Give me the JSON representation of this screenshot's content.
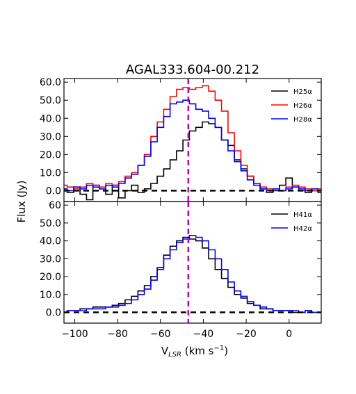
{
  "title": "AGAL333.604-00.212",
  "colors": {
    "H25a": "#000000",
    "H26a": "#ff0000",
    "H28a": "#0000ff",
    "H41a": "#000000",
    "H42a": "#0000ff",
    "vline": "#bf00bf",
    "zero": "#000000"
  },
  "chart_data": [
    {
      "type": "line",
      "panel": "top",
      "title": "AGAL333.604-00.212",
      "ylabel": "Flux (Jy)",
      "xlim": [
        -105,
        15
      ],
      "ylim": [
        -6,
        62
      ],
      "yticks": [
        "0.0",
        "10.0",
        "20.0",
        "30.0",
        "40.0",
        "50.0",
        "60.0"
      ],
      "yticks_values": [
        0,
        10,
        20,
        30,
        40,
        50,
        60
      ],
      "vline_x": -47,
      "zero_line": true,
      "legend_position": "top-right",
      "series": [
        {
          "name": "H25α",
          "key": "H25a",
          "x": [
            -105,
            -102,
            -99,
            -96,
            -93,
            -90,
            -87,
            -84,
            -81,
            -78,
            -75,
            -72,
            -69,
            -66,
            -63,
            -60,
            -57,
            -54,
            -51,
            -48,
            -45,
            -42,
            -39,
            -36,
            -33,
            -30,
            -27,
            -24,
            -21,
            -18,
            -15,
            -12,
            -9,
            -6,
            -3,
            0,
            3,
            6,
            9,
            12,
            15
          ],
          "y": [
            1,
            -1,
            2,
            -2,
            -5,
            3,
            1,
            -2,
            3,
            -4,
            0,
            3,
            -1,
            1,
            4,
            8,
            12,
            17,
            22,
            28,
            33,
            35,
            38,
            37,
            35,
            28,
            25,
            17,
            12,
            8,
            4,
            1,
            -1,
            0,
            3,
            7,
            2,
            0,
            -1,
            0,
            -1
          ]
        },
        {
          "name": "H26α",
          "key": "H26a",
          "x": [
            -105,
            -102,
            -99,
            -96,
            -93,
            -90,
            -87,
            -84,
            -81,
            -78,
            -75,
            -72,
            -69,
            -66,
            -63,
            -60,
            -57,
            -54,
            -51,
            -48,
            -45,
            -42,
            -39,
            -36,
            -33,
            -30,
            -27,
            -24,
            -21,
            -18,
            -15,
            -12,
            -9,
            -6,
            -3,
            0,
            3,
            6,
            9,
            12,
            15
          ],
          "y": [
            3,
            2,
            1,
            2,
            4,
            3,
            2,
            4,
            3,
            5,
            8,
            10,
            14,
            20,
            30,
            38,
            45,
            52,
            56,
            57,
            56,
            57,
            58,
            55,
            50,
            44,
            32,
            22,
            14,
            8,
            4,
            2,
            1,
            1,
            0,
            2,
            3,
            2,
            1,
            0,
            1
          ]
        },
        {
          "name": "H28α",
          "key": "H28a",
          "x": [
            -105,
            -102,
            -99,
            -96,
            -93,
            -90,
            -87,
            -84,
            -81,
            -78,
            -75,
            -72,
            -69,
            -66,
            -63,
            -60,
            -57,
            -54,
            -51,
            -48,
            -45,
            -42,
            -39,
            -36,
            -33,
            -30,
            -27,
            -24,
            -21,
            -18,
            -15,
            -12,
            -9,
            -6,
            -3,
            0,
            3,
            6,
            9,
            12,
            15
          ],
          "y": [
            1,
            0,
            2,
            1,
            3,
            2,
            1,
            3,
            2,
            4,
            7,
            9,
            14,
            19,
            27,
            35,
            41,
            48,
            49,
            50,
            48,
            45,
            44,
            40,
            35,
            28,
            22,
            16,
            11,
            6,
            3,
            1,
            0,
            1,
            0,
            1,
            2,
            1,
            0,
            1,
            0
          ]
        }
      ]
    },
    {
      "type": "line",
      "panel": "bottom",
      "xlabel": "V_LSR (km s^-1)",
      "xlim": [
        -105,
        15
      ],
      "ylim": [
        -6,
        62
      ],
      "yticks": [
        "0.0",
        "10.0",
        "20.0",
        "30.0",
        "40.0",
        "50.0",
        "60"
      ],
      "yticks_values": [
        0,
        10,
        20,
        30,
        40,
        50,
        60
      ],
      "xticks": [
        "−100",
        "−80",
        "−60",
        "−40",
        "−20",
        "0"
      ],
      "xticks_values": [
        -100,
        -80,
        -60,
        -40,
        -20,
        0
      ],
      "vline_x": -47,
      "zero_line": true,
      "legend_position": "top-right",
      "series": [
        {
          "name": "H41α",
          "key": "H41a",
          "x": [
            -105,
            -102,
            -99,
            -96,
            -93,
            -90,
            -87,
            -84,
            -81,
            -78,
            -75,
            -72,
            -69,
            -66,
            -63,
            -60,
            -57,
            -54,
            -51,
            -48,
            -45,
            -42,
            -39,
            -36,
            -33,
            -30,
            -27,
            -24,
            -21,
            -18,
            -15,
            -12,
            -9,
            -6,
            -3,
            0,
            3,
            6,
            9,
            12,
            15
          ],
          "y": [
            0,
            1,
            1,
            2,
            2,
            3,
            3,
            3,
            4,
            5,
            7,
            9,
            12,
            15,
            20,
            25,
            32,
            37,
            40,
            42,
            41,
            40,
            36,
            30,
            24,
            19,
            14,
            10,
            8,
            5,
            4,
            2,
            2,
            1,
            1,
            1,
            0,
            0,
            1,
            0,
            0
          ]
        },
        {
          "name": "H42α",
          "key": "H42a",
          "x": [
            -105,
            -102,
            -99,
            -96,
            -93,
            -90,
            -87,
            -84,
            -81,
            -78,
            -75,
            -72,
            -69,
            -66,
            -63,
            -60,
            -57,
            -54,
            -51,
            -48,
            -45,
            -42,
            -39,
            -36,
            -33,
            -30,
            -27,
            -24,
            -21,
            -18,
            -15,
            -12,
            -9,
            -6,
            -3,
            0,
            3,
            6,
            9,
            12,
            15
          ],
          "y": [
            0,
            1,
            1,
            1,
            2,
            2,
            2,
            3,
            3,
            4,
            5,
            7,
            10,
            13,
            18,
            24,
            30,
            35,
            39,
            41,
            43,
            42,
            40,
            35,
            30,
            24,
            17,
            12,
            9,
            6,
            4,
            3,
            2,
            1,
            1,
            1,
            1,
            0,
            1,
            0,
            0
          ]
        }
      ]
    }
  ]
}
